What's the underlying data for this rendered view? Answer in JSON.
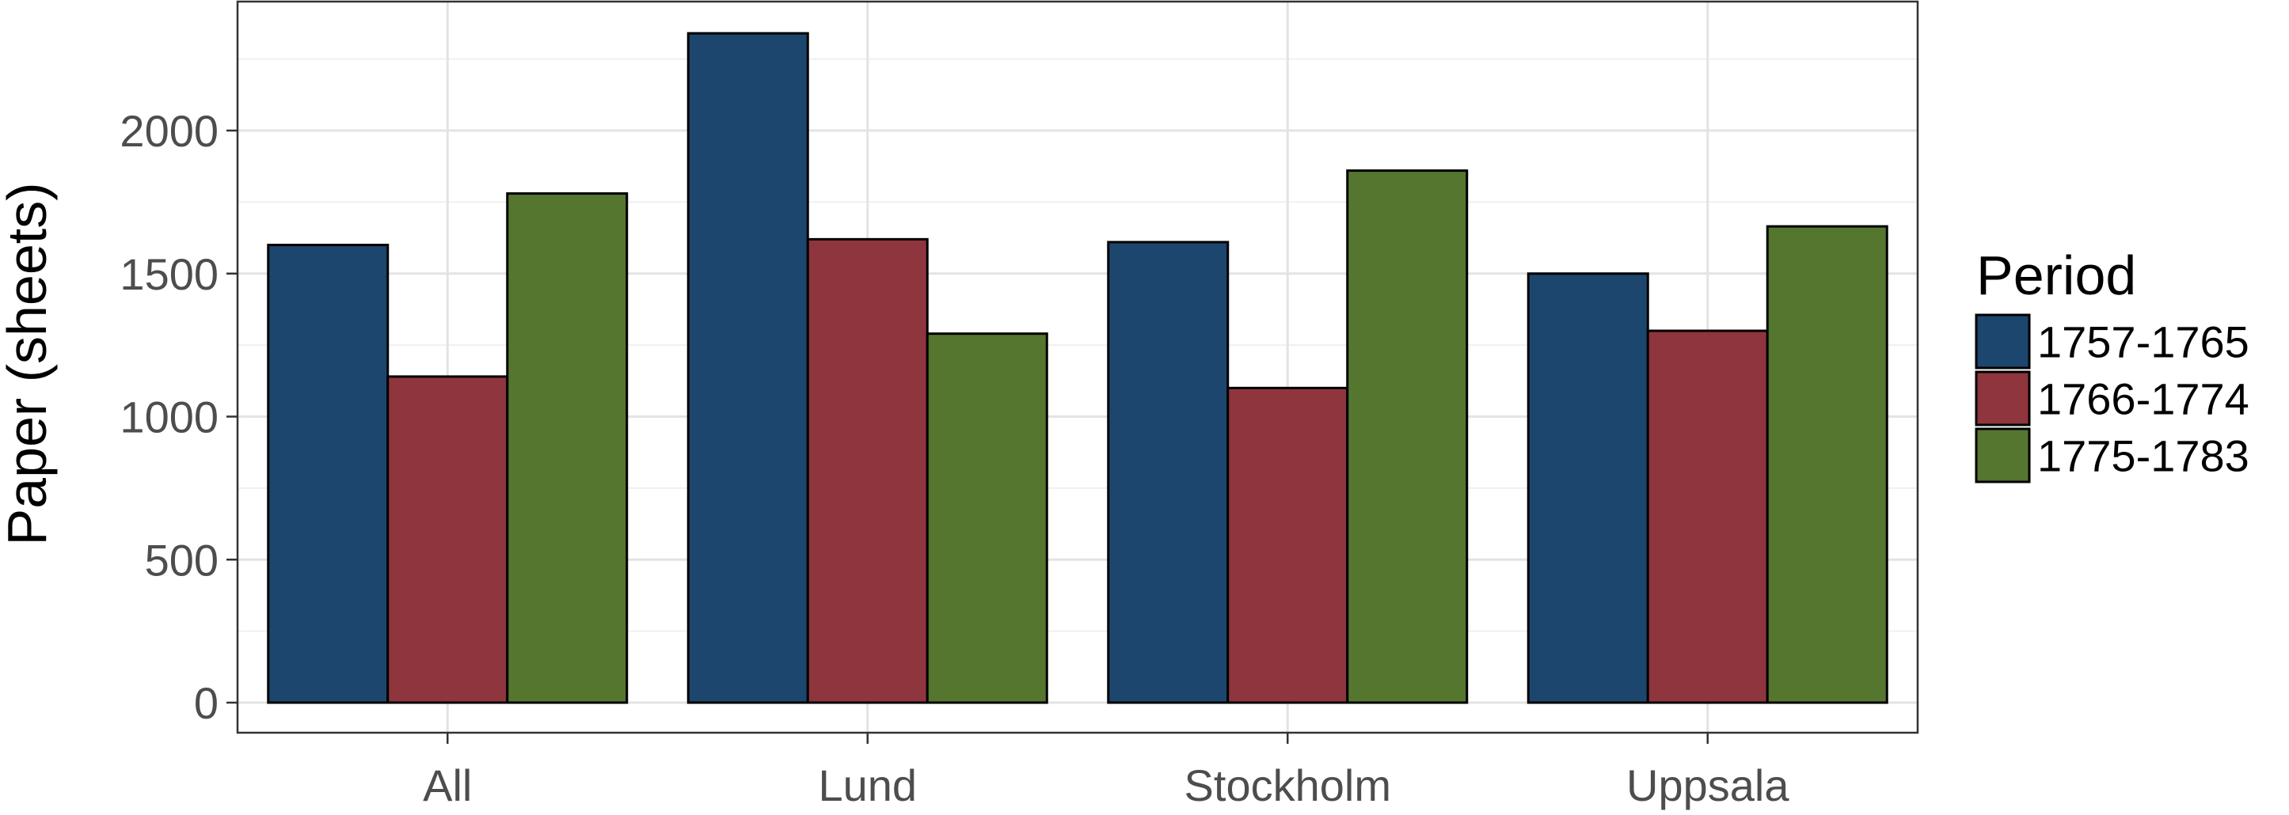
{
  "chart_data": {
    "type": "bar",
    "categories": [
      "All",
      "Lund",
      "Stockholm",
      "Uppsala"
    ],
    "series": [
      {
        "name": "1757-1765",
        "values": [
          1600,
          2340,
          1610,
          1500
        ],
        "color": "#1c466e"
      },
      {
        "name": "1766-1774",
        "values": [
          1140,
          1620,
          1100,
          1300
        ],
        "color": "#8f353d"
      },
      {
        "name": "1775-1783",
        "values": [
          1780,
          1290,
          1860,
          1665
        ],
        "color": "#55762e"
      }
    ],
    "title": "",
    "xlabel": "",
    "ylabel": "Paper (sheets)",
    "ylim": [
      0,
      2450
    ],
    "yticks": [
      0,
      500,
      1000,
      1500,
      2000
    ],
    "ytick_labels": [
      "0",
      "500",
      "1000",
      "1500",
      "2000"
    ],
    "grid": true,
    "legend": {
      "title": "Period",
      "position": "right"
    }
  }
}
